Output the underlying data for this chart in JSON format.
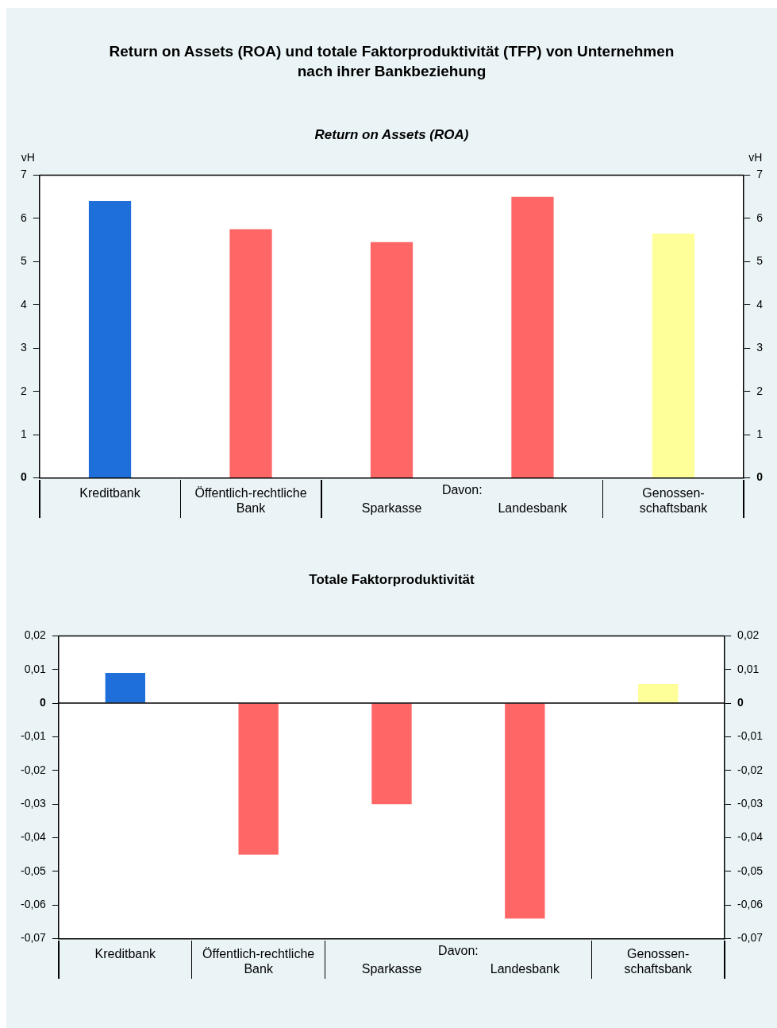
{
  "chart_data": [
    {
      "type": "bar",
      "title": "Return on Assets (ROA) und totale Faktorproduktivität (TFP) von Unternehmen nach ihrer Bankbeziehung",
      "subtitle": "Return on Assets (ROA)",
      "ylabel": "vH",
      "y2label": "vH",
      "categories": [
        "Kreditbank",
        "Öffentlich-rechtliche\nBank",
        "Sparkasse",
        "Landesbank",
        "Genossen-\nschaftsbank"
      ],
      "values": [
        6.4,
        5.75,
        5.45,
        6.5,
        5.65
      ],
      "colors": [
        "#1e6fd9",
        "#ff6666",
        "#ff6666",
        "#ff6666",
        "#ffff99"
      ],
      "ylim": [
        0,
        7
      ],
      "yticks": [
        0,
        1,
        2,
        3,
        4,
        5,
        6,
        7
      ],
      "y2lim": [
        0,
        7
      ],
      "y2ticks": [
        0,
        1,
        2,
        3,
        4,
        5,
        6,
        7
      ],
      "annotations": [
        "Davon:"
      ],
      "legend": false,
      "grid": false
    },
    {
      "type": "bar",
      "title": "Totale Faktorproduktivität",
      "categories": [
        "Kreditbank",
        "Öffentlich-rechtliche\nBank",
        "Sparkasse",
        "Landesbank",
        "Genossen-\nschaftsbank"
      ],
      "values": [
        0.009,
        -0.045,
        -0.03,
        -0.064,
        0.0057
      ],
      "colors": [
        "#1e6fd9",
        "#ff6666",
        "#ff6666",
        "#ff6666",
        "#ffff99"
      ],
      "ylim": [
        -0.07,
        0.02
      ],
      "yticks": [
        {
          "value": -0.07,
          "label": "-0,07"
        },
        {
          "value": -0.06,
          "label": "-0,06"
        },
        {
          "value": -0.05,
          "label": "-0,05"
        },
        {
          "value": -0.04,
          "label": "-0,04"
        },
        {
          "value": -0.03,
          "label": "-0,03"
        },
        {
          "value": -0.02,
          "label": "-0,02"
        },
        {
          "value": -0.01,
          "label": "-0,01"
        },
        {
          "value": 0,
          "label": "0"
        },
        {
          "value": 0.01,
          "label": "0,01"
        },
        {
          "value": 0.02,
          "label": "0,02"
        }
      ],
      "y2lim": [
        -0.07,
        0.02
      ],
      "y2ticks": [
        {
          "value": -0.07,
          "label": "-0,07"
        },
        {
          "value": -0.06,
          "label": "-0,06"
        },
        {
          "value": -0.05,
          "label": "-0,05"
        },
        {
          "value": -0.04,
          "label": "-0,04"
        },
        {
          "value": -0.03,
          "label": "-0,03"
        },
        {
          "value": -0.02,
          "label": "-0,02"
        },
        {
          "value": -0.01,
          "label": "-0,01"
        },
        {
          "value": 0,
          "label": "0"
        },
        {
          "value": 0.01,
          "label": "0,01"
        },
        {
          "value": 0.02,
          "label": "0,02"
        }
      ],
      "ref_lines": [
        {
          "axis": "y",
          "value": 0,
          "color": "#000000"
        }
      ],
      "annotations": [
        "Davon:"
      ],
      "legend": false,
      "grid": false
    }
  ]
}
